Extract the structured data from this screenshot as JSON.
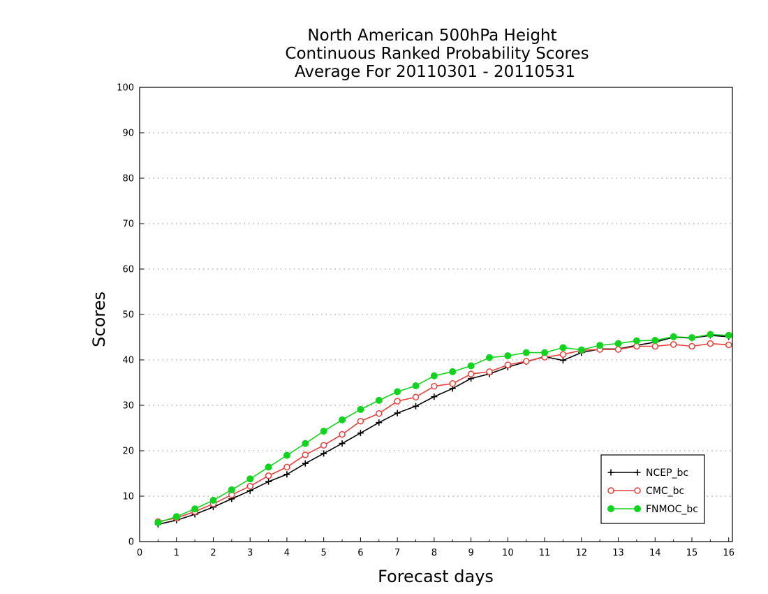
{
  "chart_data": {
    "type": "line",
    "title": [
      "North American 500hPa Height",
      "Continuous Ranked Probability Scores",
      "Average For 20110301 - 20110531"
    ],
    "xlabel": "Forecast days",
    "ylabel": "Scores",
    "xlim": [
      0,
      16.1
    ],
    "ylim": [
      0,
      100
    ],
    "xticks": [
      "0",
      "1",
      "2",
      "3",
      "4",
      "5",
      "6",
      "7",
      "8",
      "9",
      "10",
      "11",
      "12",
      "13",
      "14",
      "15",
      "16"
    ],
    "yticks": [
      "0",
      "10",
      "20",
      "30",
      "40",
      "50",
      "60",
      "70",
      "80",
      "90",
      "100"
    ],
    "grid": "horizontal dotted",
    "legend_position": "bottom-right",
    "x": [
      0.5,
      1,
      1.5,
      2,
      2.5,
      3,
      3.5,
      4,
      4.5,
      5,
      5.5,
      6,
      6.5,
      7,
      7.5,
      8,
      8.5,
      9,
      9.5,
      10,
      10.5,
      11,
      11.5,
      12,
      12.5,
      13,
      13.5,
      14,
      14.5,
      15,
      15.5,
      16
    ],
    "series": [
      {
        "name": "NCEP_bc",
        "color": "#000000",
        "marker": "plus",
        "values": [
          3.8,
          4.7,
          6.0,
          7.6,
          9.4,
          11.2,
          13.2,
          14.8,
          17.2,
          19.4,
          21.6,
          23.9,
          26.2,
          28.3,
          29.8,
          31.9,
          33.7,
          35.9,
          36.9,
          38.4,
          39.6,
          40.7,
          39.9,
          41.6,
          42.4,
          42.4,
          43.2,
          43.9,
          45.0,
          44.8,
          45.4,
          45.1
        ]
      },
      {
        "name": "CMC_bc",
        "color": "#e8413c",
        "marker": "open-circle",
        "values": [
          4.4,
          5.2,
          6.6,
          8.3,
          10.3,
          12.2,
          14.5,
          16.4,
          19.1,
          21.2,
          23.6,
          26.5,
          28.2,
          30.9,
          31.8,
          34.2,
          34.8,
          36.9,
          37.4,
          38.9,
          39.7,
          40.6,
          41.2,
          42.1,
          42.3,
          42.3,
          43.0,
          43.0,
          43.4,
          43.0,
          43.6,
          43.3
        ]
      },
      {
        "name": "FNMOC_bc",
        "color": "#12d41e",
        "marker": "filled-circle",
        "values": [
          4.2,
          5.5,
          7.2,
          9.1,
          11.4,
          13.8,
          16.4,
          19.0,
          21.6,
          24.3,
          26.8,
          29.1,
          31.1,
          33.0,
          34.3,
          36.5,
          37.4,
          38.7,
          40.5,
          40.9,
          41.6,
          41.6,
          42.7,
          42.2,
          43.2,
          43.6,
          44.2,
          44.3,
          45.1,
          44.9,
          45.6,
          45.4
        ]
      }
    ]
  }
}
